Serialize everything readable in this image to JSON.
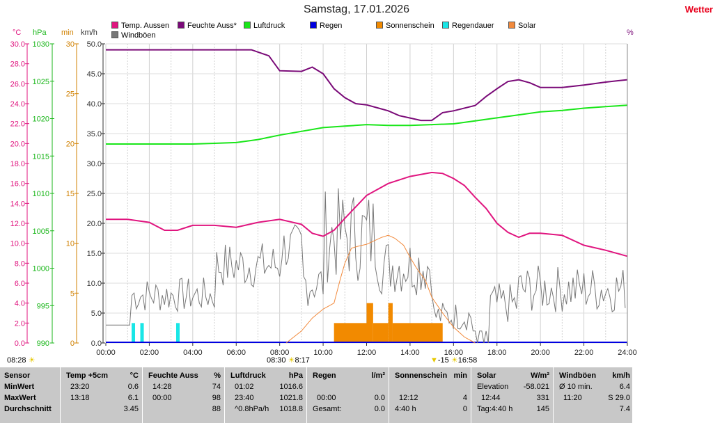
{
  "title": "Samstag, 17.01.2026",
  "brand": "Wetter",
  "percent_label": "%",
  "legend": [
    {
      "label": "Temp. Aussen",
      "color": "#e0157f"
    },
    {
      "label": "Feuchte Auss*",
      "color": "#7a0a78"
    },
    {
      "label": "Luftdruck",
      "color": "#19e619"
    },
    {
      "label": "Regen",
      "color": "#0000e0"
    },
    {
      "label": "Sonnenschein",
      "color": "#f28a00"
    },
    {
      "label": "Regendauer",
      "color": "#19e6e6"
    },
    {
      "label": "Solar",
      "color": "#f28a3c"
    },
    {
      "label": "Windböen",
      "color": "#777777"
    }
  ],
  "chart_data": {
    "type": "line",
    "x_ticks": [
      "00:00",
      "02:00",
      "04:00",
      "06:00",
      "08:00",
      "10:00",
      "12:00",
      "14:00",
      "16:00",
      "18:00",
      "20:00",
      "22:00",
      "24:00"
    ],
    "xlim": [
      0,
      24
    ],
    "axes": {
      "temp": {
        "unit": "°C",
        "ticks": [
          "0.0",
          "2.0",
          "4.0",
          "6.0",
          "8.0",
          "10.0",
          "12.0",
          "14.0",
          "16.0",
          "18.0",
          "20.0",
          "22.0",
          "24.0",
          "26.0",
          "28.0",
          "30.0"
        ],
        "ylim": [
          0,
          30
        ],
        "color": "#e0157f"
      },
      "pressure": {
        "unit": "hPa",
        "ticks": [
          "990",
          "995",
          "1000",
          "1005",
          "1010",
          "1015",
          "1020",
          "1025",
          "1030"
        ],
        "ylim": [
          990,
          1030
        ],
        "color": "#19b619"
      },
      "minutes": {
        "unit": "min",
        "ticks": [
          "0",
          "5",
          "10",
          "15",
          "20",
          "25",
          "30"
        ],
        "ylim": [
          0,
          30
        ],
        "color": "#d08000"
      },
      "wind": {
        "unit": "km/h",
        "ticks": [
          "0.0",
          "5.0",
          "10.0",
          "15.0",
          "20.0",
          "25.0",
          "30.0",
          "35.0",
          "40.0",
          "45.0",
          "50.0"
        ],
        "ylim": [
          0,
          50
        ],
        "color": "#333333"
      }
    },
    "series": [
      {
        "name": "Temp. Aussen",
        "axis": "temp",
        "color": "#e0157f",
        "x": [
          0,
          1,
          2,
          2.7,
          3.3,
          4,
          5,
          6,
          7,
          8,
          9,
          9.5,
          10,
          10.5,
          11,
          12,
          13,
          14,
          15,
          15.5,
          16,
          16.5,
          17,
          17.5,
          18,
          18.5,
          19,
          19.5,
          20,
          21,
          22,
          23,
          24
        ],
        "y": [
          12.4,
          12.4,
          12.1,
          11.3,
          11.3,
          11.8,
          11.8,
          11.6,
          12.1,
          12.4,
          11.9,
          11.0,
          10.7,
          11.3,
          12.5,
          14.8,
          16.0,
          16.7,
          17.1,
          17.0,
          16.5,
          15.8,
          14.6,
          13.5,
          12.0,
          11.1,
          10.6,
          11.0,
          11.0,
          10.8,
          9.8,
          9.3,
          8.7
        ]
      },
      {
        "name": "Feuchte Auss*",
        "axis": "wind",
        "color": "#7a0a78",
        "x": [
          0,
          6.7,
          7.5,
          8,
          9,
          9.5,
          10,
          10.5,
          11,
          11.5,
          12,
          12.5,
          13,
          13.5,
          14,
          14.5,
          15,
          15.5,
          16,
          17,
          17.5,
          18,
          18.5,
          19,
          19.5,
          20,
          21,
          22,
          23,
          24
        ],
        "y": [
          49.0,
          49.0,
          48.0,
          45.5,
          45.4,
          46.1,
          45.0,
          42.5,
          41.0,
          40.0,
          39.8,
          39.3,
          38.8,
          38.0,
          37.6,
          37.2,
          37.2,
          38.5,
          38.8,
          39.7,
          41.2,
          42.5,
          43.7,
          44.0,
          43.5,
          42.7,
          42.7,
          43.1,
          43.6,
          44.0
        ]
      },
      {
        "name": "Luftdruck",
        "axis": "pressure",
        "color": "#19e619",
        "x": [
          0,
          1,
          2,
          3,
          4,
          5,
          6,
          7,
          8,
          9,
          10,
          11,
          12,
          13,
          14,
          15,
          16,
          17,
          18,
          19,
          20,
          21,
          22,
          23,
          24
        ],
        "y": [
          1016.6,
          1016.6,
          1016.6,
          1016.6,
          1016.6,
          1016.7,
          1016.8,
          1017.2,
          1017.8,
          1018.3,
          1018.8,
          1019.0,
          1019.2,
          1019.1,
          1019.1,
          1019.2,
          1019.3,
          1019.7,
          1020.1,
          1020.5,
          1020.9,
          1021.1,
          1021.4,
          1021.6,
          1021.8
        ]
      },
      {
        "name": "Solar",
        "axis": "minutes",
        "color": "#f28a3c",
        "x": [
          8.3,
          9,
          9.5,
          10,
          10.5,
          10.8,
          11,
          11.3,
          11.6,
          12,
          12.3,
          12.7,
          13,
          13.3,
          13.7,
          14,
          14.3,
          14.7,
          15,
          15.5,
          16,
          16.5,
          17
        ],
        "y": [
          0.0,
          1.2,
          2.5,
          3.4,
          4.0,
          6.5,
          8.0,
          9.5,
          9.7,
          9.9,
          10.2,
          10.6,
          10.8,
          10.5,
          9.8,
          8.6,
          7.5,
          6.3,
          4.6,
          3.0,
          1.6,
          0.6,
          0.0
        ]
      },
      {
        "name": "Windböen",
        "axis": "wind",
        "color": "#777777"
      }
    ],
    "sunshine_bars": [
      {
        "start": 10.5,
        "end": 12.0,
        "minutes": 2
      },
      {
        "start": 12.0,
        "end": 12.3,
        "minutes": 4
      },
      {
        "start": 12.3,
        "end": 13.0,
        "minutes": 2
      },
      {
        "start": 13.0,
        "end": 13.2,
        "minutes": 4
      },
      {
        "start": 13.2,
        "end": 15.5,
        "minutes": 2
      }
    ],
    "rain_duration_bars": [
      {
        "time": 1.25,
        "minutes": 2
      },
      {
        "time": 1.65,
        "minutes": 2
      },
      {
        "time": 3.3,
        "minutes": 2
      }
    ]
  },
  "table": {
    "row_labels": [
      "Sensor",
      "MinWert",
      "MaxWert",
      "Durchschnitt"
    ],
    "columns": [
      {
        "header": "Temp +5cm",
        "unit": "°C",
        "rows": [
          [
            "23:20",
            "0.6"
          ],
          [
            "13:18",
            "6.1"
          ],
          [
            "",
            "3.45"
          ]
        ]
      },
      {
        "header": "Feuchte Auss",
        "unit": "%",
        "rows": [
          [
            "14:28",
            "74"
          ],
          [
            "00:00",
            "98"
          ],
          [
            "",
            "88"
          ]
        ]
      },
      {
        "header": "Luftdruck",
        "unit": "hPa",
        "rows": [
          [
            "01:02",
            "1016.6"
          ],
          [
            "23:40",
            "1021.8"
          ],
          [
            "^0.8hPa/h",
            "1018.8"
          ]
        ]
      },
      {
        "header": "Regen",
        "unit": "l/m²",
        "rows": [
          [
            "",
            ""
          ],
          [
            "00:00",
            "0.0"
          ],
          [
            "Gesamt:",
            "0.0"
          ]
        ]
      },
      {
        "header": "Sonnenschein",
        "unit": "min",
        "rows": [
          [
            "",
            ""
          ],
          [
            "12:12",
            "4"
          ],
          [
            "4:40 h",
            "0"
          ]
        ]
      },
      {
        "header": "Solar",
        "unit": "W/m²",
        "rows": [
          [
            "Elevation",
            "-58.021"
          ],
          [
            "12:44",
            "331"
          ],
          [
            "Tag:4:40 h",
            "145"
          ]
        ]
      },
      {
        "header": "Windböen",
        "unit": "km/h",
        "rows": [
          [
            "Ø 10 min.",
            "6.4"
          ],
          [
            "11:20",
            "S 29.0"
          ],
          [
            "",
            "7.4"
          ]
        ]
      }
    ]
  },
  "footer": {
    "time_left": "08:28",
    "sunrise": "08:30",
    "sunrise_b": "8:17",
    "sunset_a": "-15",
    "sunset_b": "16:58"
  }
}
